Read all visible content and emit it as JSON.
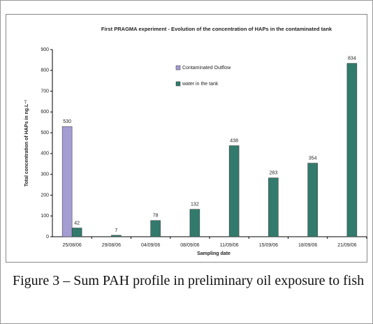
{
  "chart_data": {
    "type": "bar",
    "title": "First PRAGMA experiment - Evolution of the concentration of HAPs in the contaminated tank",
    "x_label": "Sampling date",
    "y_label": "Total concentration of HAPs in ng.L⁻¹",
    "categories": [
      "25/08/06",
      "29/08/06",
      "04/09/06",
      "08/09/06",
      "11/09/06",
      "15/09/06",
      "18/09/06",
      "21/09/06"
    ],
    "series": [
      {
        "name": "Contaminated Outflow",
        "color": "#a49dd2",
        "values": [
          530,
          null,
          null,
          null,
          null,
          null,
          null,
          null
        ]
      },
      {
        "name": "water in the tank",
        "color": "#327a6c",
        "values": [
          42,
          7,
          78,
          132,
          438,
          283,
          354,
          834
        ]
      }
    ],
    "ylim": [
      0,
      900
    ],
    "yticks": [
      0,
      100,
      200,
      300,
      400,
      500,
      600,
      700,
      800,
      900
    ],
    "caption": "Figure 3 – Sum PAH profile in preliminary oil exposure to fish"
  }
}
